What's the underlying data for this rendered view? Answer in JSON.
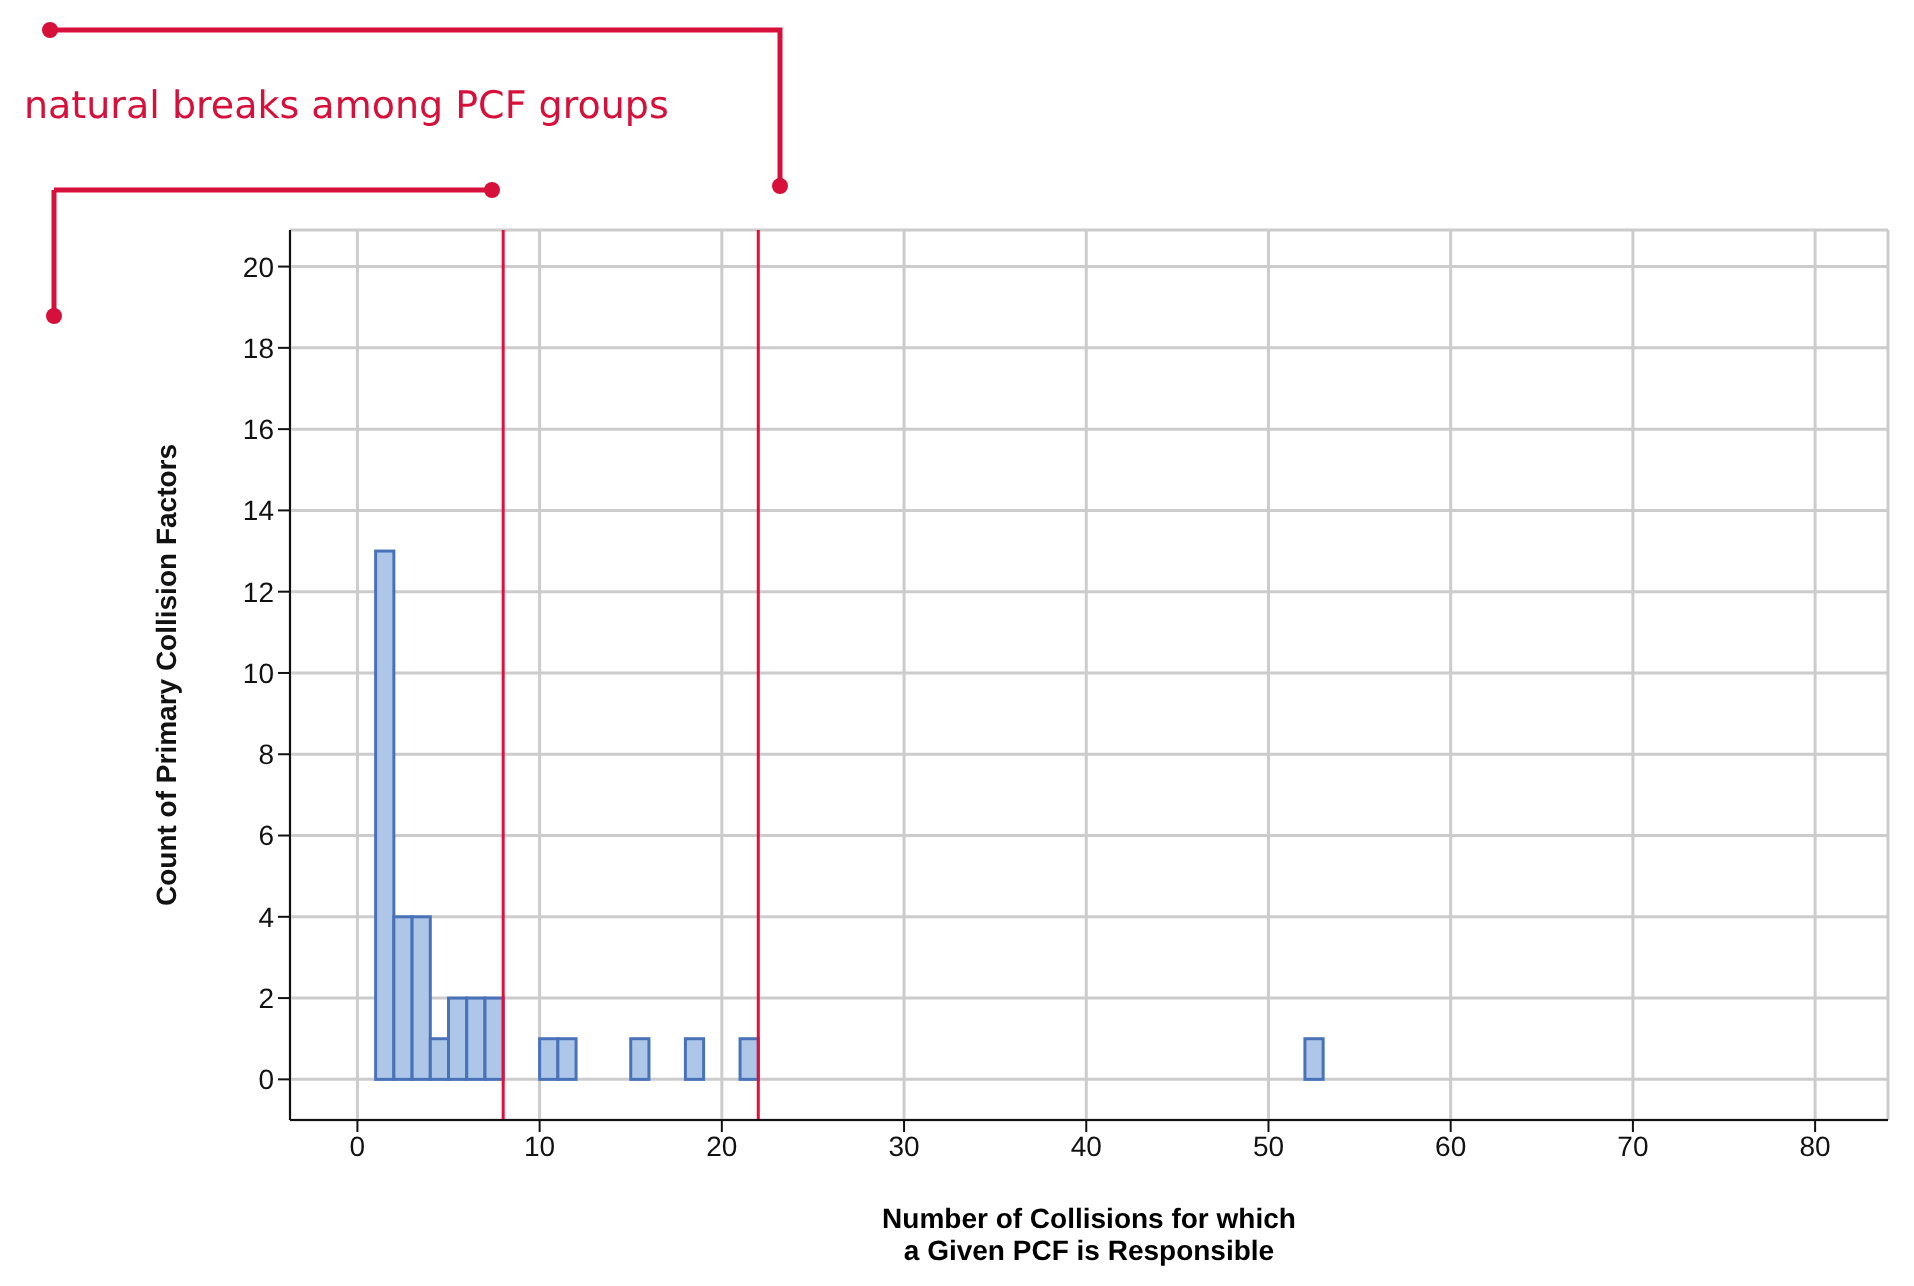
{
  "chart_data": {
    "type": "histogram",
    "xlabel": "Number of Collisions for which\na Given PCF is Responsible",
    "ylabel": "Count of Primary Collision Factors",
    "annotations": [
      "natural breaks among PCF groups"
    ],
    "bins": [
      0,
      1,
      2,
      3,
      4,
      5,
      6,
      7,
      8,
      9,
      10,
      11,
      12,
      13,
      14,
      15,
      16,
      17,
      18,
      19,
      20,
      21,
      22,
      23,
      24,
      25,
      26,
      27,
      28,
      29,
      30,
      31,
      32,
      33,
      34,
      35,
      36,
      37,
      38,
      39,
      40,
      41,
      42,
      43,
      44,
      45,
      46,
      47,
      48,
      49,
      50,
      51,
      52,
      53,
      54,
      55,
      56,
      57,
      58,
      59,
      60,
      61,
      62,
      63,
      64,
      65,
      66,
      67,
      68,
      69,
      70,
      71,
      72,
      73,
      74,
      75,
      76,
      77,
      78,
      79,
      80
    ],
    "values": [
      0,
      13,
      4,
      4,
      1,
      2,
      2,
      2,
      0,
      0,
      1,
      1,
      0,
      0,
      0,
      1,
      0,
      0,
      1,
      0,
      0,
      1,
      0,
      0,
      0,
      0,
      0,
      0,
      0,
      0,
      0,
      0,
      0,
      0,
      0,
      0,
      0,
      0,
      0,
      0,
      0,
      0,
      0,
      0,
      0,
      0,
      0,
      0,
      0,
      0,
      0,
      0,
      1,
      0,
      0,
      0,
      0,
      0,
      0,
      0,
      0,
      0,
      0,
      0,
      0,
      0,
      0,
      0,
      0,
      0,
      0,
      0,
      0,
      0,
      0,
      0,
      0,
      0,
      0,
      0
    ],
    "color": "#aec7e8",
    "xlim": [
      -3.7,
      84
    ],
    "xticks": [
      0,
      10,
      20,
      30,
      40,
      50,
      60,
      70,
      80
    ],
    "ylim": [
      -1,
      20.9
    ],
    "yticks": [
      0,
      2,
      4,
      6,
      8,
      10,
      12,
      14,
      16,
      18,
      20
    ],
    "grid": true,
    "ref_lines": [
      {
        "axis": "x",
        "value": 8,
        "color": "#e0103a"
      },
      {
        "axis": "x",
        "value": 22,
        "color": "#e0103a"
      }
    ]
  }
}
